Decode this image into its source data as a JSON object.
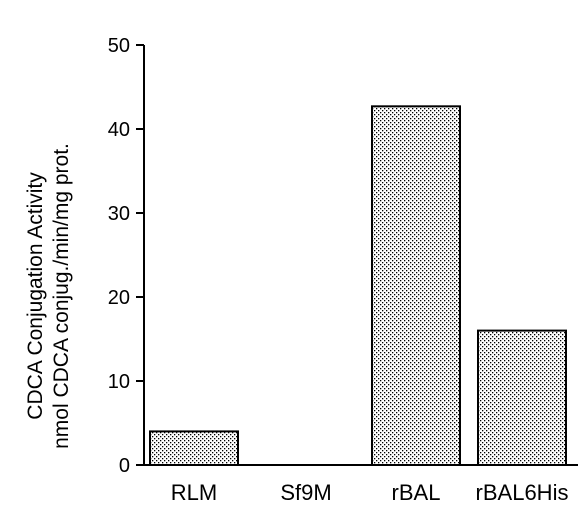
{
  "chart_data": {
    "type": "bar",
    "categories": [
      "RLM",
      "Sf9M",
      "rBAL",
      "rBAL6His"
    ],
    "values": [
      4.0,
      0,
      42.7,
      16.0
    ],
    "title": "",
    "xlabel": "",
    "ylabel": "CDCA Conjugation Activity",
    "ylabel_units": "nmol CDCA conjug./min/mg prot.",
    "ylim": [
      0,
      50
    ],
    "yticks": [
      "0",
      "10",
      "20",
      "30",
      "40",
      "50"
    ],
    "grid": false,
    "bar_fill": "dotted stipple",
    "colors": {
      "bar_fill": "#ffffff",
      "dots": "#000000",
      "axis": "#000000"
    }
  }
}
